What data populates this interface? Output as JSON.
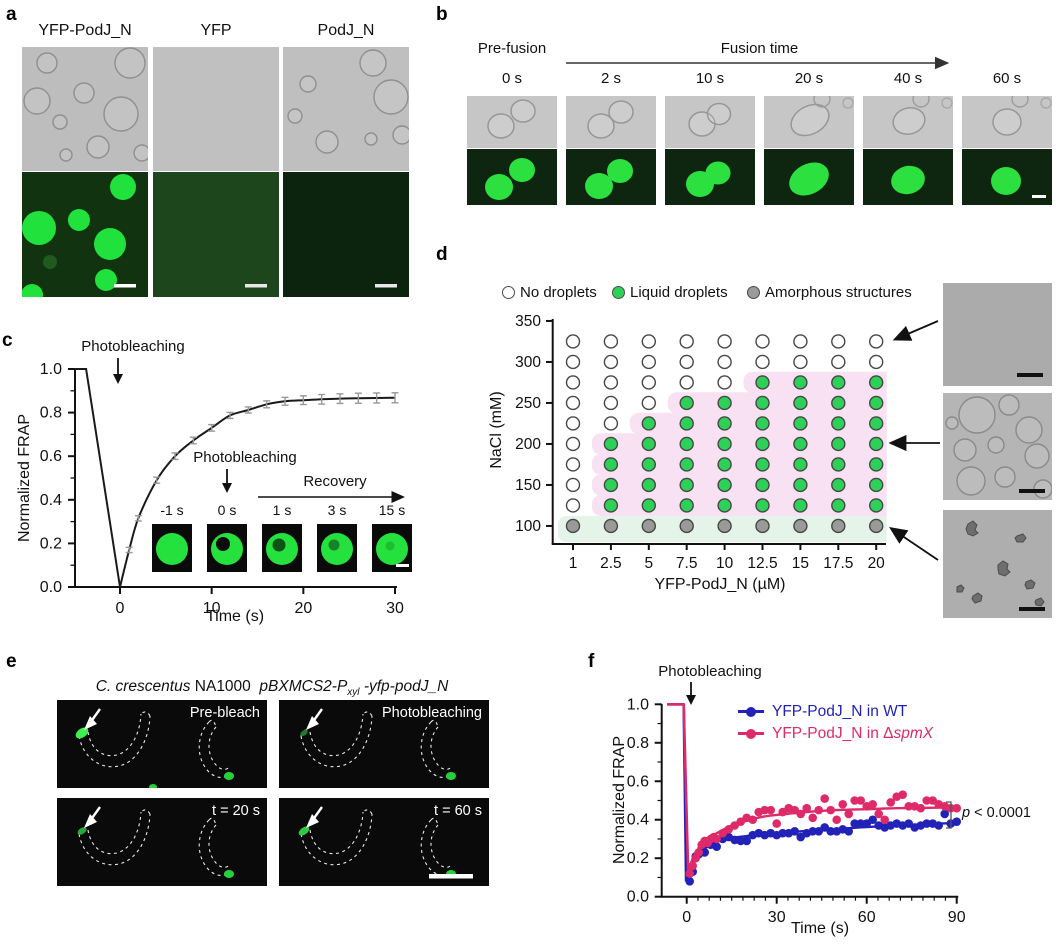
{
  "panels": {
    "a": {
      "label": "a",
      "column_titles": [
        "YFP-PodJ_N",
        "YFP",
        "PodJ_N"
      ]
    },
    "b": {
      "label": "b",
      "prefusion": "Pre-fusion",
      "fusion": "Fusion time",
      "timepoints": [
        "0 s",
        "2 s",
        "10 s",
        "20 s",
        "40 s",
        "60 s"
      ]
    },
    "c": {
      "label": "c"
    },
    "d": {
      "label": "d"
    },
    "e": {
      "label": "e",
      "title": {
        "species": "C. crescentus",
        "strain": "NA1000",
        "plasmid": "pBXMCS2-P",
        "plasmid_subscript": "xyl",
        "gene": "-yfp-podJ_N"
      },
      "frames": [
        "Pre-bleach",
        "Photobleaching",
        "t = 20 s",
        "t = 60 s"
      ]
    },
    "f": {
      "label": "f"
    }
  },
  "chart_data": [
    {
      "panel": "c",
      "type": "line",
      "xlabel": "Time (s)",
      "ylabel": "Normalized FRAP",
      "xlim": [
        -5,
        30
      ],
      "ylim": [
        0,
        1.0
      ],
      "xticks": [
        0,
        10,
        20,
        30
      ],
      "yticks": [
        0.0,
        0.2,
        0.4,
        0.6,
        0.8,
        1.0
      ],
      "line_color": "#1a1a1a",
      "error_color": "#999999",
      "annotations": {
        "photobleaching": "Photobleaching",
        "inset_photobleaching": "Photobleaching",
        "recovery": "Recovery",
        "inset_times": [
          "-1 s",
          "0 s",
          "1 s",
          "3 s",
          "15 s"
        ]
      },
      "prebleach": [
        [
          -4.9,
          1.0
        ],
        [
          -3.7,
          1.0
        ],
        [
          0,
          0.0
        ]
      ],
      "recovery_points": [
        [
          1,
          0.17
        ],
        [
          2,
          0.315
        ],
        [
          4,
          0.49
        ],
        [
          6,
          0.6
        ],
        [
          8,
          0.672
        ],
        [
          10,
          0.73
        ],
        [
          12,
          0.787
        ],
        [
          14,
          0.812
        ],
        [
          16,
          0.838
        ],
        [
          18,
          0.852
        ],
        [
          20,
          0.857
        ],
        [
          22,
          0.861
        ],
        [
          24,
          0.864
        ],
        [
          26,
          0.866
        ],
        [
          28,
          0.867
        ],
        [
          30,
          0.868
        ]
      ],
      "errors": [
        0.012,
        0.012,
        0.014,
        0.015,
        0.015,
        0.015,
        0.014,
        0.014,
        0.016,
        0.018,
        0.02,
        0.022,
        0.022,
        0.023,
        0.023,
        0.023
      ]
    },
    {
      "panel": "d",
      "type": "scatter-grid",
      "xlabel": "YFP-PodJ_N (µM)",
      "ylabel": "NaCl (mM)",
      "x_categories": [
        1,
        2.5,
        5,
        7.5,
        10,
        12.5,
        15,
        17.5,
        20
      ],
      "y_values": [
        325,
        300,
        275,
        250,
        225,
        200,
        175,
        150,
        125,
        100
      ],
      "yticks": [
        100,
        150,
        200,
        250,
        300,
        350
      ],
      "grid": [
        "NNNNNNNNN",
        "NNNNNNNNN",
        "NNNNNLLLL",
        "NNNLLLLLL",
        "NNLLLLLLL",
        "NLLLLLLLL",
        "NLLLLLLLL",
        "NLLLLLLLL",
        "NLLLLLLLL",
        "AAAAAAAAA"
      ],
      "legend": [
        {
          "code": "N",
          "label": "No droplets",
          "fill": "#ffffff"
        },
        {
          "code": "L",
          "label": "Liquid droplets",
          "fill": "#2ed158"
        },
        {
          "code": "A",
          "label": "Amorphous structures",
          "fill": "#9a9a9a"
        }
      ],
      "regions": {
        "liquid_fill": "#f8e1f2",
        "amorphous_fill": "#e4f4e9"
      }
    },
    {
      "panel": "f",
      "type": "scatter+line",
      "xlabel": "Time (s)",
      "ylabel": "Normalized FRAP",
      "xlim": [
        -7,
        92
      ],
      "ylim": [
        0,
        1.0
      ],
      "xticks": [
        0,
        30,
        60,
        90
      ],
      "minor_x_step": 3.75,
      "yticks": [
        0.0,
        0.2,
        0.4,
        0.6,
        0.8,
        1.0
      ],
      "annotations": {
        "photobleaching": "Photobleaching",
        "pvalue_symbol": "p",
        "pvalue_rest": " < 0.0001"
      },
      "series": [
        {
          "label_prefix": "YFP-PodJ_N in WT",
          "label_delta": "",
          "label_italic": "",
          "color": "#2222b8",
          "pre": [
            [
              -6.5,
              1.0
            ],
            [
              -1.0,
              1.0
            ]
          ],
          "drop_t": -0.2,
          "fit": [
            [
              0,
              0.08
            ],
            [
              2,
              0.17
            ],
            [
              4,
              0.22
            ],
            [
              6,
              0.25
            ],
            [
              8,
              0.27
            ],
            [
              10,
              0.285
            ],
            [
              15,
              0.305
            ],
            [
              20,
              0.315
            ],
            [
              25,
              0.323
            ],
            [
              30,
              0.33
            ],
            [
              40,
              0.342
            ],
            [
              50,
              0.352
            ],
            [
              60,
              0.362
            ],
            [
              70,
              0.37
            ],
            [
              80,
              0.377
            ],
            [
              90,
              0.383
            ]
          ],
          "scatter": [
            [
              1,
              0.08
            ],
            [
              2,
              0.13
            ],
            [
              3,
              0.21
            ],
            [
              4,
              0.22
            ],
            [
              5,
              0.25
            ],
            [
              6,
              0.23
            ],
            [
              7,
              0.28
            ],
            [
              8,
              0.27
            ],
            [
              9,
              0.29
            ],
            [
              10,
              0.26
            ],
            [
              12,
              0.3
            ],
            [
              14,
              0.31
            ],
            [
              16,
              0.295
            ],
            [
              18,
              0.29
            ],
            [
              20,
              0.29
            ],
            [
              22,
              0.32
            ],
            [
              24,
              0.33
            ],
            [
              26,
              0.32
            ],
            [
              28,
              0.33
            ],
            [
              30,
              0.32
            ],
            [
              32,
              0.33
            ],
            [
              34,
              0.33
            ],
            [
              36,
              0.34
            ],
            [
              38,
              0.31
            ],
            [
              40,
              0.33
            ],
            [
              42,
              0.34
            ],
            [
              44,
              0.34
            ],
            [
              46,
              0.36
            ],
            [
              48,
              0.34
            ],
            [
              50,
              0.34
            ],
            [
              52,
              0.35
            ],
            [
              54,
              0.34
            ],
            [
              56,
              0.38
            ],
            [
              58,
              0.38
            ],
            [
              60,
              0.38
            ],
            [
              62,
              0.4
            ],
            [
              64,
              0.37
            ],
            [
              66,
              0.36
            ],
            [
              68,
              0.37
            ],
            [
              70,
              0.38
            ],
            [
              72,
              0.37
            ],
            [
              74,
              0.38
            ],
            [
              76,
              0.36
            ],
            [
              78,
              0.37
            ],
            [
              80,
              0.38
            ],
            [
              82,
              0.38
            ],
            [
              84,
              0.37
            ],
            [
              86,
              0.43
            ],
            [
              88,
              0.38
            ],
            [
              90,
              0.39
            ]
          ]
        },
        {
          "label_prefix": "YFP-PodJ_N in ",
          "label_delta": "Δ",
          "label_italic": "spmX",
          "color": "#de2a69",
          "pre": [
            [
              -6.5,
              1.0
            ],
            [
              -1.0,
              1.0
            ]
          ],
          "drop_t": 0.5,
          "fit": [
            [
              0,
              0.12
            ],
            [
              2,
              0.2
            ],
            [
              4,
              0.25
            ],
            [
              6,
              0.285
            ],
            [
              8,
              0.31
            ],
            [
              10,
              0.33
            ],
            [
              15,
              0.37
            ],
            [
              20,
              0.395
            ],
            [
              25,
              0.415
            ],
            [
              30,
              0.425
            ],
            [
              40,
              0.44
            ],
            [
              50,
              0.45
            ],
            [
              60,
              0.455
            ],
            [
              70,
              0.46
            ],
            [
              80,
              0.462
            ],
            [
              90,
              0.465
            ]
          ],
          "scatter": [
            [
              1,
              0.12
            ],
            [
              2,
              0.16
            ],
            [
              3,
              0.2
            ],
            [
              4,
              0.23
            ],
            [
              5,
              0.27
            ],
            [
              6,
              0.29
            ],
            [
              7,
              0.28
            ],
            [
              8,
              0.3
            ],
            [
              9,
              0.31
            ],
            [
              10,
              0.3
            ],
            [
              12,
              0.33
            ],
            [
              14,
              0.35
            ],
            [
              16,
              0.37
            ],
            [
              18,
              0.39
            ],
            [
              20,
              0.41
            ],
            [
              22,
              0.4
            ],
            [
              24,
              0.44
            ],
            [
              26,
              0.45
            ],
            [
              28,
              0.45
            ],
            [
              30,
              0.38
            ],
            [
              32,
              0.44
            ],
            [
              34,
              0.46
            ],
            [
              36,
              0.45
            ],
            [
              38,
              0.43
            ],
            [
              40,
              0.46
            ],
            [
              42,
              0.41
            ],
            [
              44,
              0.45
            ],
            [
              46,
              0.51
            ],
            [
              48,
              0.45
            ],
            [
              50,
              0.4
            ],
            [
              52,
              0.48
            ],
            [
              54,
              0.43
            ],
            [
              56,
              0.5
            ],
            [
              58,
              0.5
            ],
            [
              60,
              0.47
            ],
            [
              62,
              0.48
            ],
            [
              64,
              0.43
            ],
            [
              66,
              0.4
            ],
            [
              68,
              0.49
            ],
            [
              70,
              0.52
            ],
            [
              72,
              0.53
            ],
            [
              74,
              0.47
            ],
            [
              76,
              0.47
            ],
            [
              78,
              0.46
            ],
            [
              80,
              0.5
            ],
            [
              82,
              0.5
            ],
            [
              84,
              0.48
            ],
            [
              86,
              0.47
            ],
            [
              88,
              0.46
            ],
            [
              90,
              0.46
            ]
          ]
        }
      ]
    }
  ]
}
